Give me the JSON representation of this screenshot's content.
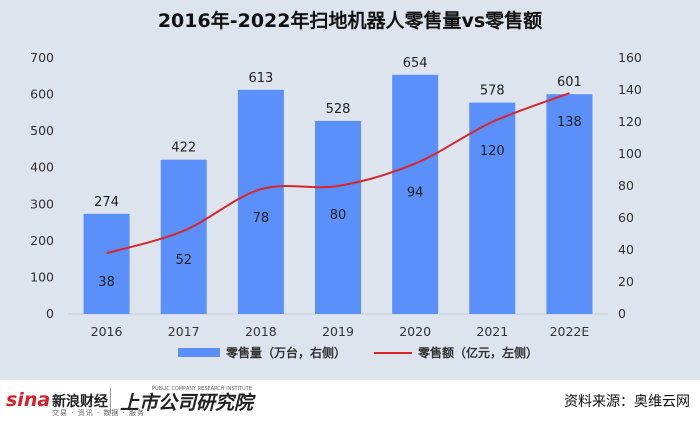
{
  "chart_data": {
    "type": "bar+line",
    "title": "2016年-2022年扫地机器人零售量vs零售额",
    "categories": [
      "2016",
      "2017",
      "2018",
      "2019",
      "2020",
      "2021",
      "2022E"
    ],
    "series": [
      {
        "name": "零售量（万台，右侧）",
        "type": "bar",
        "axis": "left",
        "values": [
          274,
          422,
          613,
          528,
          654,
          578,
          601
        ],
        "color": "#5b8ff9"
      },
      {
        "name": "零售额（亿元，左侧）",
        "type": "line",
        "axis": "right",
        "values": [
          38,
          52,
          78,
          80,
          94,
          120,
          138
        ],
        "color": "#d9262c"
      }
    ],
    "y_left": {
      "min": 0,
      "max": 700,
      "ticks": [
        "0",
        "100",
        "200",
        "300",
        "400",
        "500",
        "600",
        "700"
      ]
    },
    "y_right": {
      "min": 0,
      "max": 160,
      "ticks": [
        "0",
        "20",
        "40",
        "60",
        "80",
        "100",
        "120",
        "140",
        "160"
      ]
    },
    "legend_position": "bottom",
    "grid": false
  },
  "footer": {
    "brand_sina": "sina",
    "brand_finance": "新浪财经",
    "brand_sub": "交易 · 资讯 · 数据 · 服务",
    "brand_institute": "上市公司研究院",
    "brand_institute_en": "PUBLIC COMPANY RESEARCH INSTITUTE",
    "source": "资料来源：奥维云网"
  }
}
